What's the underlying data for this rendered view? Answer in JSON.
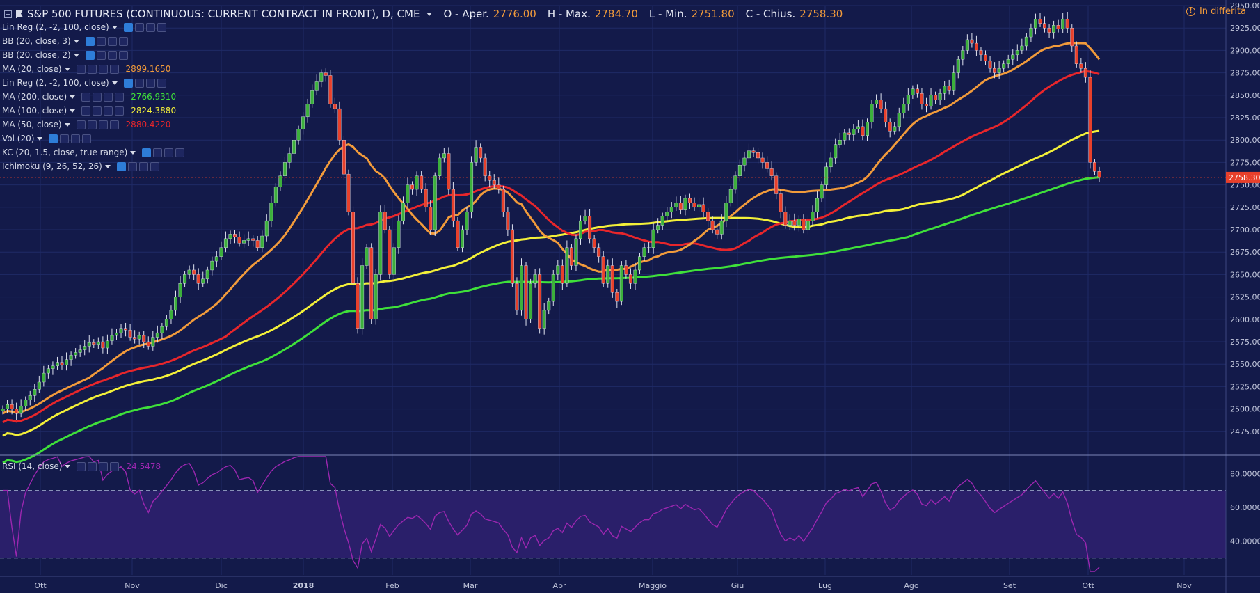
{
  "header": {
    "symbol": "S&P 500 FUTURES (CONTINUOUS: CURRENT CONTRACT IN FRONT), D, CME",
    "open_label": "O - Aper.",
    "open": "2776.00",
    "high_label": "H - Max.",
    "high": "2784.70",
    "low_label": "L - Min.",
    "low": "2751.80",
    "close_label": "C - Chius.",
    "close": "2758.30",
    "delayed": "In differita"
  },
  "indicators": [
    {
      "label": "Lin Reg (2, -2, 100, close)",
      "value": "",
      "color": "#d7dbe8",
      "visible": true
    },
    {
      "label": "BB (20, close, 3)",
      "value": "",
      "color": "#d7dbe8",
      "visible": true
    },
    {
      "label": "BB (20, close, 2)",
      "value": "",
      "color": "#d7dbe8",
      "visible": true
    },
    {
      "label": "MA (20, close)",
      "value": "2899.1650",
      "color": "#f29b3b",
      "visible": false
    },
    {
      "label": "Lin Reg (2, -2, 100, close)",
      "value": "",
      "color": "#d7dbe8",
      "visible": true
    },
    {
      "label": "MA (200, close)",
      "value": "2766.9310",
      "color": "#3fe03a",
      "visible": false
    },
    {
      "label": "MA (100, close)",
      "value": "2824.3880",
      "color": "#f3f039",
      "visible": false
    },
    {
      "label": "MA (50, close)",
      "value": "2880.4220",
      "color": "#e8262b",
      "visible": false
    },
    {
      "label": "Vol (20)",
      "value": "",
      "color": "#d7dbe8",
      "visible": true
    },
    {
      "label": "KC (20, 1.5, close, true range)",
      "value": "",
      "color": "#d7dbe8",
      "visible": true
    },
    {
      "label": "Ichimoku (9, 26, 52, 26)",
      "value": "",
      "color": "#d7dbe8",
      "visible": true
    }
  ],
  "rsi": {
    "label": "RSI (14, close)",
    "value": "24.5478",
    "color": "#9c27b0"
  },
  "colors": {
    "background": "#131a4a",
    "grid": "#1f2a66",
    "up": "#3cb03c",
    "down": "#e8402b",
    "ma20": "#f29b3b",
    "ma50": "#e8262b",
    "ma100": "#f3f039",
    "ma200": "#3fe03a",
    "rsi_line": "#9c27b0",
    "rsi_band": "#2a1f6a"
  },
  "chart_data": [
    {
      "type": "candlestick",
      "title": "S&P 500 FUTURES (CONTINUOUS: CURRENT CONTRACT IN FRONT), D, CME",
      "ylim": [
        2450,
        2950
      ],
      "yticks": [
        2475,
        2500,
        2525,
        2550,
        2575,
        2600,
        2625,
        2650,
        2675,
        2700,
        2725,
        2750,
        2775,
        2800,
        2825,
        2850,
        2875,
        2900,
        2925,
        2950
      ],
      "ytick_labels": [
        "2475.00",
        "2500.00",
        "2525.00",
        "2550.00",
        "2575.00",
        "2600.00",
        "2625.00",
        "2650.00",
        "2675.00",
        "2700.00",
        "2725.00",
        "2750.00",
        "2775.00",
        "2800.00",
        "2825.00",
        "2850.00",
        "2875.00",
        "2900.00",
        "2925.00",
        "2950.00"
      ],
      "last_price": 2758.3,
      "last_price_label": "2758.30",
      "month_labels": [
        "Ott",
        "Nov",
        "Dic",
        "2018",
        "Feb",
        "Mar",
        "Apr",
        "Maggio",
        "Giu",
        "Lug",
        "Ago",
        "Set",
        "Ott",
        "Nov"
      ],
      "closes": [
        2500,
        2505,
        2500,
        2495,
        2503,
        2510,
        2515,
        2522,
        2530,
        2540,
        2545,
        2548,
        2552,
        2549,
        2555,
        2560,
        2563,
        2566,
        2570,
        2574,
        2572,
        2575,
        2568,
        2576,
        2582,
        2585,
        2590,
        2588,
        2580,
        2578,
        2582,
        2575,
        2570,
        2580,
        2585,
        2592,
        2600,
        2610,
        2625,
        2640,
        2650,
        2655,
        2650,
        2640,
        2645,
        2655,
        2665,
        2670,
        2680,
        2690,
        2695,
        2692,
        2685,
        2688,
        2690,
        2688,
        2680,
        2693,
        2710,
        2730,
        2748,
        2760,
        2775,
        2785,
        2800,
        2812,
        2826,
        2840,
        2855,
        2865,
        2875,
        2872,
        2840,
        2835,
        2800,
        2762,
        2720,
        2640,
        2590,
        2660,
        2680,
        2600,
        2650,
        2720,
        2700,
        2650,
        2680,
        2710,
        2730,
        2750,
        2745,
        2760,
        2745,
        2725,
        2700,
        2760,
        2780,
        2785,
        2745,
        2710,
        2680,
        2700,
        2720,
        2775,
        2792,
        2780,
        2760,
        2755,
        2750,
        2745,
        2720,
        2700,
        2640,
        2610,
        2660,
        2600,
        2640,
        2650,
        2590,
        2610,
        2620,
        2650,
        2660,
        2640,
        2680,
        2660,
        2690,
        2710,
        2715,
        2690,
        2680,
        2670,
        2640,
        2660,
        2630,
        2620,
        2660,
        2650,
        2640,
        2655,
        2670,
        2680,
        2680,
        2700,
        2705,
        2715,
        2720,
        2725,
        2730,
        2722,
        2735,
        2730,
        2725,
        2728,
        2720,
        2710,
        2700,
        2695,
        2710,
        2730,
        2745,
        2760,
        2772,
        2780,
        2788,
        2786,
        2780,
        2775,
        2768,
        2760,
        2740,
        2720,
        2705,
        2710,
        2705,
        2712,
        2700,
        2710,
        2720,
        2735,
        2750,
        2770,
        2780,
        2795,
        2800,
        2808,
        2806,
        2812,
        2815,
        2805,
        2820,
        2840,
        2845,
        2835,
        2820,
        2810,
        2815,
        2830,
        2840,
        2850,
        2857,
        2852,
        2840,
        2838,
        2850,
        2845,
        2852,
        2860,
        2855,
        2875,
        2890,
        2900,
        2912,
        2908,
        2900,
        2895,
        2888,
        2880,
        2875,
        2880,
        2885,
        2890,
        2895,
        2900,
        2905,
        2915,
        2925,
        2935,
        2930,
        2925,
        2920,
        2928,
        2924,
        2935,
        2925,
        2905,
        2885,
        2880,
        2870,
        2775,
        2765,
        2758.3
      ]
    },
    {
      "type": "line",
      "title": "RSI (14, close)",
      "ylim": [
        20,
        90
      ],
      "yticks": [
        40,
        60,
        80
      ],
      "ytick_labels": [
        "40.0000",
        "60.0000",
        "80.0000"
      ],
      "bands": [
        30,
        70
      ],
      "last_value": 24.5478
    }
  ]
}
